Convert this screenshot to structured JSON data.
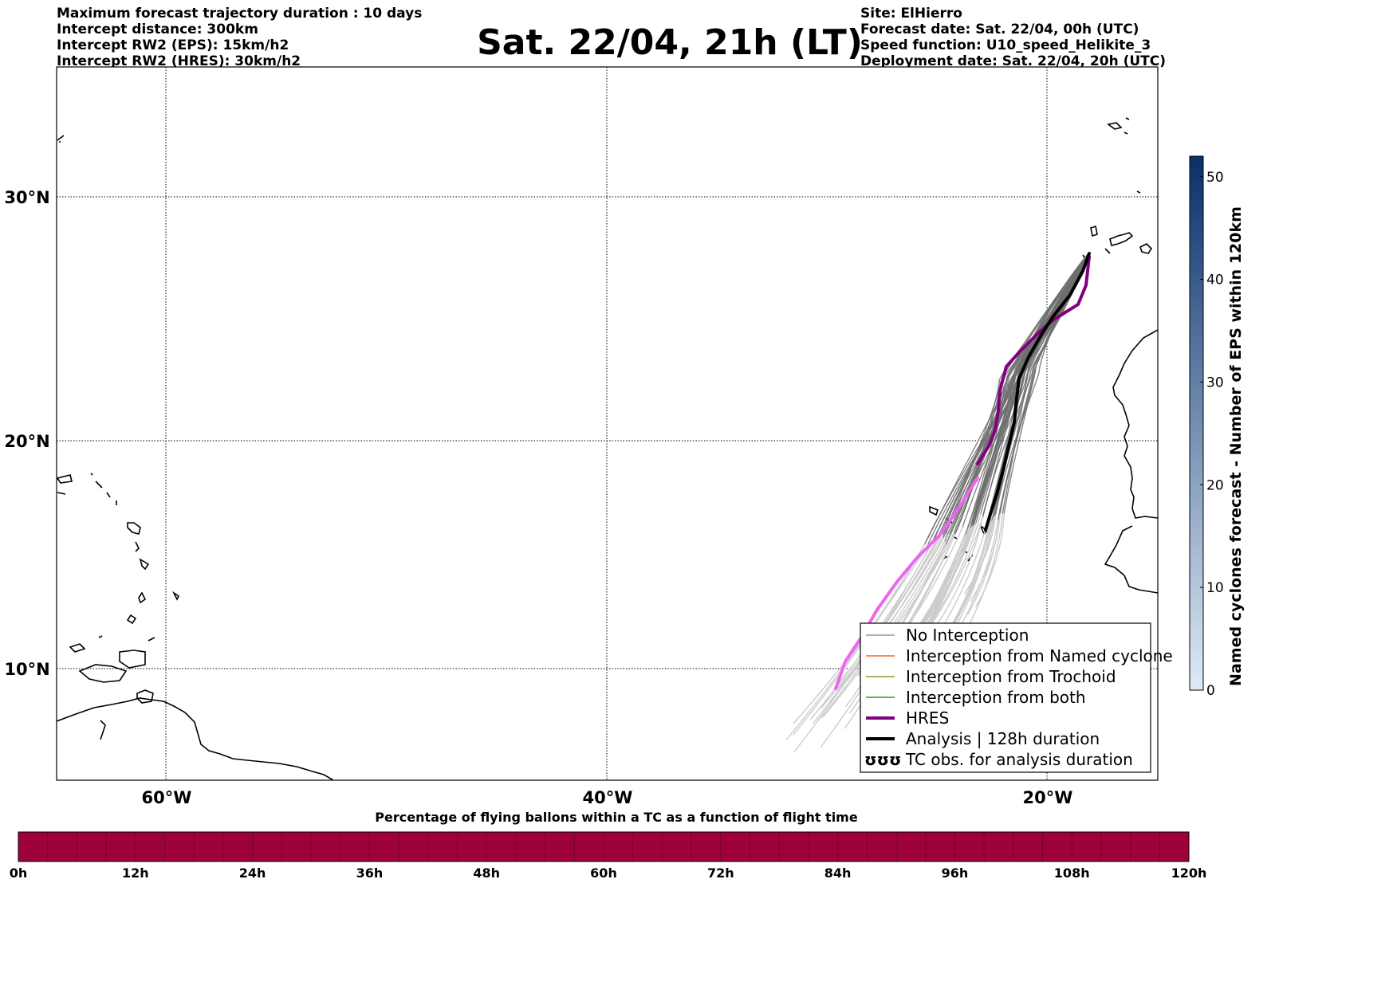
{
  "header": {
    "left": [
      "Maximum forecast trajectory duration : 10 days",
      "Intercept distance: 300km",
      "Intercept RW2 (EPS):  15km/h2",
      "Intercept RW2 (HRES): 30km/h2"
    ],
    "title": "Sat. 22/04, 21h (LT)",
    "right": [
      "Site: ElHierro",
      "Forecast date: Sat. 22/04, 00h (UTC)",
      "Speed function: U10_speed_Helikite_3",
      "Deployment date: Sat. 22/04, 20h (UTC)"
    ]
  },
  "map": {
    "lon_labels": [
      "60°W",
      "40°W",
      "20°W"
    ],
    "lat_labels": [
      "30°N",
      "20°N",
      "10°N"
    ]
  },
  "legend": {
    "items": [
      {
        "label": "No Interception",
        "color": "#808080",
        "style": "thin"
      },
      {
        "label": "Interception from Named cyclone",
        "color": "#ff4500",
        "style": "thin"
      },
      {
        "label": "Interception from Trochoid",
        "color": "#808000",
        "style": "thin"
      },
      {
        "label": "Interception from both",
        "color": "#008000",
        "style": "thin"
      },
      {
        "label": "HRES",
        "color": "#800080",
        "style": "thick"
      },
      {
        "label": "Analysis | 128h duration",
        "color": "#000000",
        "style": "thick"
      },
      {
        "label": "TC obs. for analysis duration",
        "color": "#000000",
        "style": "symbol",
        "symbol": "ʊʊʊ"
      }
    ]
  },
  "side_colorbar": {
    "label": "Named cyclones forecast - Number of EPS within 120km",
    "ticks": [
      "0",
      "10",
      "20",
      "30",
      "40",
      "50"
    ],
    "max": 52,
    "color_low": "#deebf7",
    "color_high": "#08306b"
  },
  "bottom_colorbar": {
    "label": "Percentage of flying ballons within a TC as a function of flight time",
    "ticks": [
      "0h",
      "12h",
      "24h",
      "36h",
      "48h",
      "60h",
      "72h",
      "84h",
      "96h",
      "108h",
      "120h"
    ],
    "color": "#9e003a"
  },
  "colors": {
    "eps_forecast": "#6e6e6e",
    "eps_faded": "#cccccc",
    "hres": "#800080",
    "hres_faded": "#ee66ee",
    "analysis": "#000000"
  }
}
